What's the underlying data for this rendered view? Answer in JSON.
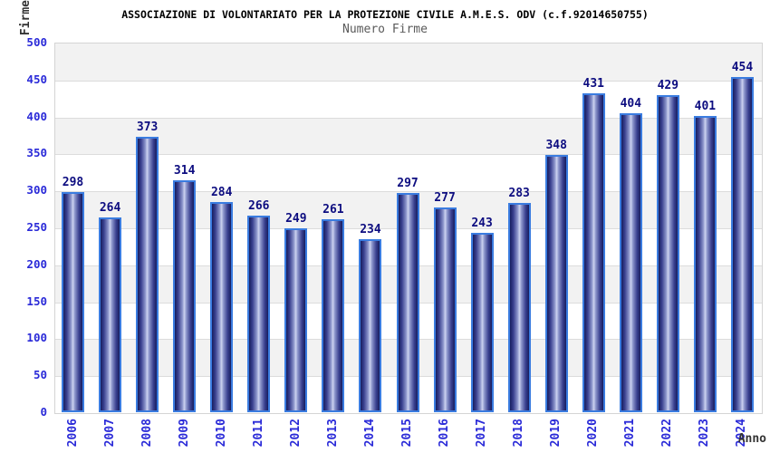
{
  "header": {
    "title": "ASSOCIAZIONE DI VOLONTARIATO PER LA PROTEZIONE CIVILE A.M.E.S. ODV (c.f.92014650755)",
    "subtitle": "Numero Firme"
  },
  "chart_data": {
    "type": "bar",
    "title": "ASSOCIAZIONE DI VOLONTARIATO PER LA PROTEZIONE CIVILE A.M.E.S. ODV (c.f.92014650755)",
    "subtitle": "Numero Firme",
    "xlabel": "Anno",
    "ylabel": "Firme",
    "categories": [
      "2006",
      "2007",
      "2008",
      "2009",
      "2010",
      "2011",
      "2012",
      "2013",
      "2014",
      "2015",
      "2016",
      "2017",
      "2018",
      "2019",
      "2020",
      "2021",
      "2022",
      "2023",
      "2024"
    ],
    "values": [
      298,
      264,
      373,
      314,
      284,
      266,
      249,
      261,
      234,
      297,
      277,
      243,
      283,
      348,
      431,
      404,
      429,
      401,
      454
    ],
    "ylim": [
      0,
      500
    ],
    "y_tick_step": 50,
    "grid": "horizontal",
    "legend": "none",
    "value_labels_shown": true,
    "colors": {
      "bar_outline": "#3a7ce0",
      "bar_dark": "#171d5e",
      "bar_light": "#cdd3f0",
      "tick_label": "#2a2ad8",
      "value_label": "#0d0d80",
      "band_gray": "#f2f2f2",
      "band_white": "#ffffff",
      "gridline": "#dcdcdc",
      "plot_border": "#d4d4d4",
      "subtitle_gray": "#5a5a5a",
      "axis_title": "#333333"
    }
  }
}
